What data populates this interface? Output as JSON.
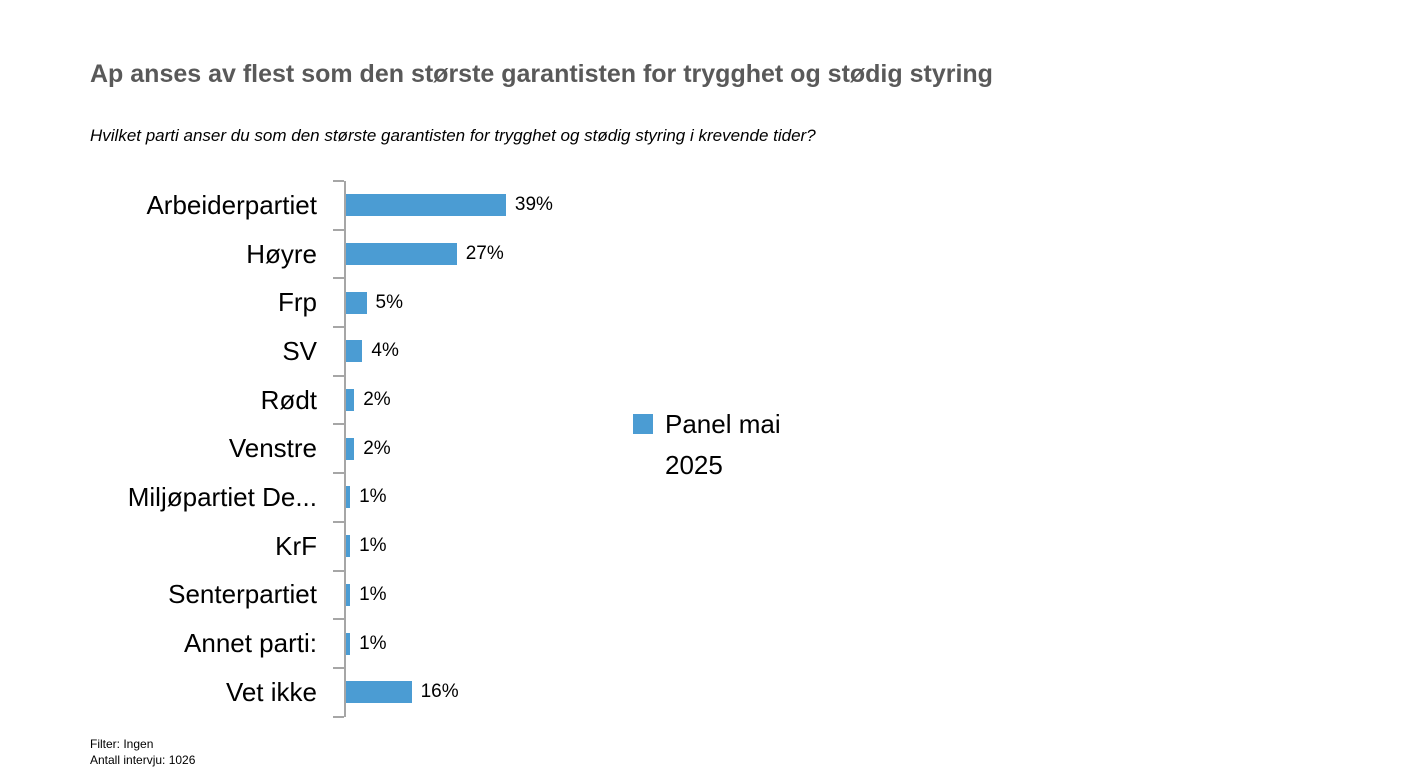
{
  "title": "Ap anses av flest som den største garantisten for trygghet og stødig styring",
  "subtitle": "Hvilket parti anser du som den største garantisten for trygghet og stødig styring i krevende tider?",
  "colors": {
    "bar": "#4b9cd3",
    "axis": "#a6a6a6",
    "title_text": "#595959"
  },
  "legend": {
    "label": "Panel mai 2025",
    "swatch_color": "#4b9cd3",
    "position": "right"
  },
  "footer": {
    "filter": "Filter: Ingen",
    "interviews": "Antall intervju: 1026"
  },
  "chart_data": {
    "type": "bar",
    "orientation": "horizontal",
    "title": "Ap anses av flest som den største garantisten for trygghet og stødig styring",
    "categories": [
      "Arbeiderpartiet",
      "Høyre",
      "Frp",
      "SV",
      "Rødt",
      "Venstre",
      "Miljøpartiet De...",
      "KrF",
      "Senterpartiet",
      "Annet parti:",
      "Vet ikke"
    ],
    "values": [
      39,
      27,
      5,
      4,
      2,
      2,
      1,
      1,
      1,
      1,
      16
    ],
    "value_labels": [
      "39%",
      "27%",
      "5%",
      "4%",
      "2%",
      "2%",
      "1%",
      "1%",
      "1%",
      "1%",
      "16%"
    ],
    "series": [
      {
        "name": "Panel mai 2025",
        "values": [
          39,
          27,
          5,
          4,
          2,
          2,
          1,
          1,
          1,
          1,
          16
        ]
      }
    ],
    "unit": "%",
    "xlabel": "",
    "ylabel": "",
    "xlim": [
      0,
      45
    ],
    "grid": false,
    "x_axis_labels_visible": false,
    "legend_position": "right"
  }
}
